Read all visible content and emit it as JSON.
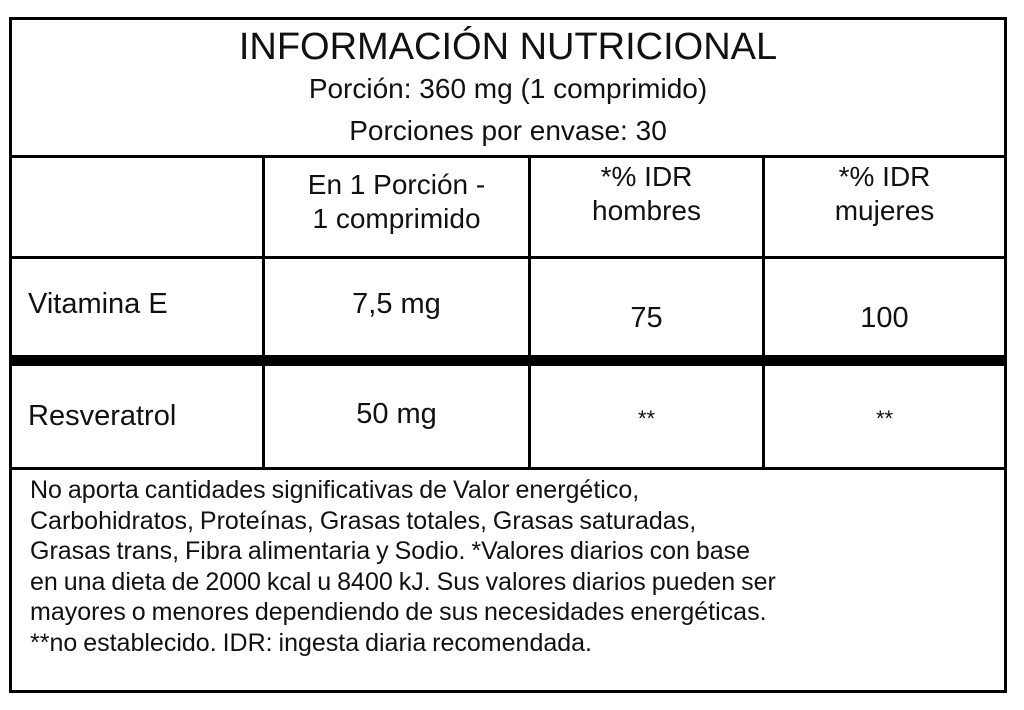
{
  "header": {
    "title": "INFORMACIÓN NUTRICIONAL",
    "serving": "Porción: 360 mg (1 comprimido)",
    "servings_per_container": "Porciones por envase: 30"
  },
  "table": {
    "columns": [
      "",
      [
        "En 1 Porción -",
        "1 comprimido"
      ],
      [
        "*% IDR",
        "hombres"
      ],
      [
        "*% IDR",
        "mujeres"
      ]
    ],
    "rows": [
      {
        "name": "Vitamina E",
        "amount": "7,5 mg",
        "idr_men": "75",
        "idr_women": "100"
      },
      {
        "name": "Resveratrol",
        "amount": "50 mg",
        "idr_men": "**",
        "idr_women": "**"
      }
    ]
  },
  "footnote": [
    "No aporta cantidades significativas de Valor energético,",
    "Carbohidratos, Proteínas, Grasas totales, Grasas saturadas,",
    "Grasas trans, Fibra alimentaria y Sodio.  *Valores diarios con base",
    "en una dieta de 2000 kcal u 8400 kJ. Sus valores diarios pueden ser",
    "mayores o menores dependiendo de sus necesidades energéticas.",
    "**no establecido. IDR: ingesta diaria recomendada."
  ]
}
